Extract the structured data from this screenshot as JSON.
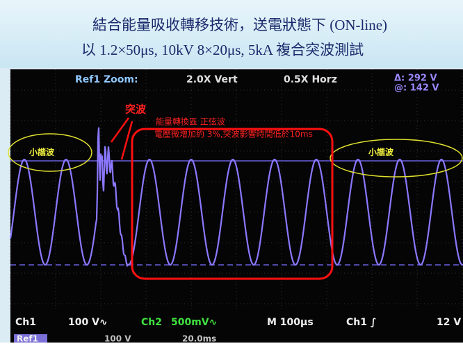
{
  "header": {
    "line1": "結合能量吸收轉移技術，送電狀態下 (ON-line)",
    "line2": "以 1.2×50μs, 10kV 8×20μs, 5kA 複合突波測試"
  },
  "scope": {
    "top": {
      "ref": "Ref1 Zoom:",
      "vert": "2.0X Vert",
      "horz": "0.5X Horz",
      "delta": "Δ: 292 V",
      "at": "@: 142 V"
    },
    "annotations": {
      "surge": "突波",
      "zone": "能量轉換區 正弦波",
      "note": "電壓微增加約 3%,突波影響時間低於10ms",
      "harmonic_left": "小諧波",
      "harmonic_right": "小諧波"
    },
    "status": {
      "ch1": "Ch1",
      "ch1_scale": "100 V∿",
      "ch2": "Ch2",
      "ch2_scale": "500mV∿",
      "time": "M 100μs",
      "trigger": "Ch1 ∫",
      "level": "12 V",
      "ref": "Ref1",
      "ref_scale": "100 V",
      "ref_time": "20.0ms"
    }
  }
}
